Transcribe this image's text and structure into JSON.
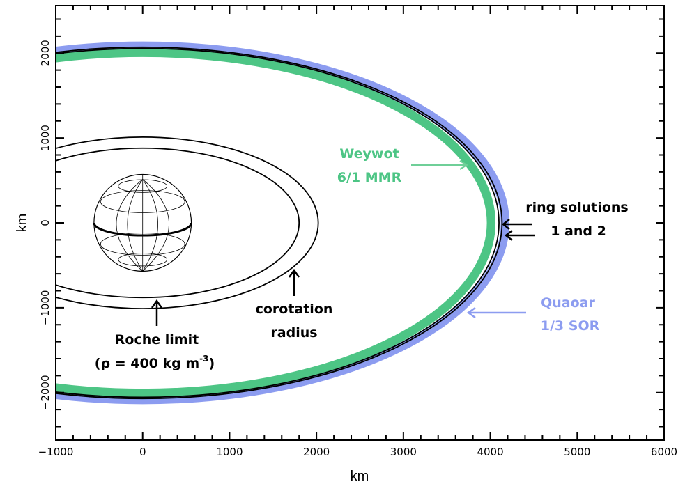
{
  "chart_data": {
    "type": "diagram-plot",
    "xlabel": "km",
    "ylabel": "km",
    "xlim": [
      -1000,
      6000
    ],
    "ylim": [
      -2560,
      2560
    ],
    "xticks": [
      -1000,
      0,
      1000,
      2000,
      3000,
      4000,
      5000,
      6000
    ],
    "xtick_labels": [
      "−1000",
      "0",
      "1000",
      "2000",
      "3000",
      "4000",
      "5000",
      "6000"
    ],
    "yticks": [
      -2000,
      -1000,
      0,
      1000,
      2000
    ],
    "ytick_labels": [
      "−2000",
      "−1000",
      "0",
      "1000",
      "2000"
    ],
    "grid": false,
    "ellipses": [
      {
        "name": "Quaoar 1/3 SOR",
        "a": 4170,
        "b": 2085,
        "color": "#8c9cf0",
        "band": 100
      },
      {
        "name": "Weywot 6/1 MMR",
        "a": 4010,
        "b": 2005,
        "color": "#4dc585",
        "band": 100
      },
      {
        "name": "ring solution 1",
        "a": 4100,
        "b": 2055,
        "color": "#000000"
      },
      {
        "name": "ring solution 2",
        "a": 4135,
        "b": 2070,
        "color": "#000000"
      },
      {
        "name": "corotation radius",
        "a": 2020,
        "b": 1010,
        "color": "#000000"
      },
      {
        "name": "Roche limit",
        "a": 1800,
        "b": 880,
        "color": "#000000"
      }
    ],
    "body": {
      "name": "Quaoar",
      "rx": 560,
      "ry": 570
    },
    "annotations": {
      "weywot": [
        "Weywot",
        "6/1 MMR"
      ],
      "ring": [
        "ring solutions",
        "1 and 2"
      ],
      "quaoar": [
        "Quaoar",
        "1/3 SOR"
      ],
      "corotation": [
        "corotation",
        "radius"
      ],
      "roche": [
        "Roche limit",
        "(ρ = 400 kg m",
        "-3",
        ")"
      ]
    },
    "colors": {
      "weywot": "#4dc585",
      "quaoar": "#8c9cf0",
      "ink": "#000000"
    }
  }
}
